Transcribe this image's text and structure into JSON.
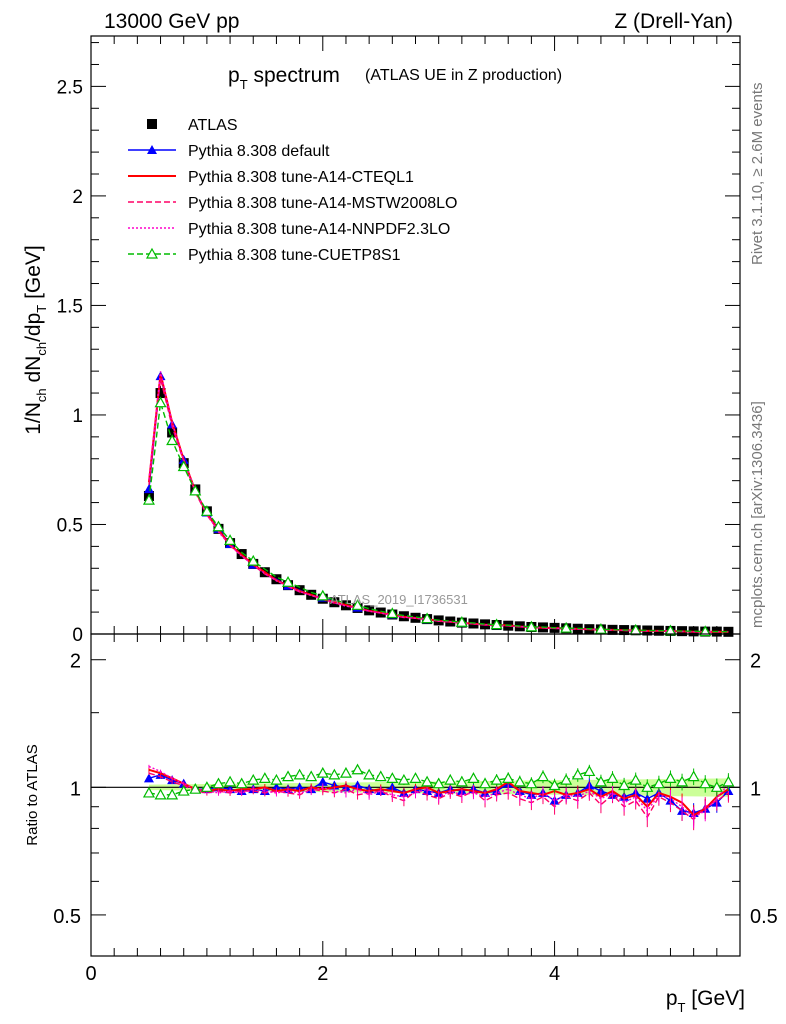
{
  "header": {
    "left": "13000 GeV pp",
    "right": "Z (Drell-Yan)"
  },
  "title": {
    "main": "p",
    "main_sub": "T",
    "main_rest": " spectrum",
    "extra": "(ATLAS UE in Z production)"
  },
  "side": {
    "rivet": "Rivet 3.1.10, ≥ 2.6M events",
    "mcplots": "mcplots.cern.ch [arXiv:1306.3436]"
  },
  "watermark": "ATLAS_2019_I1736531",
  "chart_data": {
    "type": "line",
    "xlabel": "p_T [GeV]",
    "ylabel": "1/N_ch dN_ch/dp_T [GeV]",
    "xlim": [
      0,
      5.6
    ],
    "ylim": [
      0,
      2.73
    ],
    "xticks": [
      {
        "v": 0,
        "t": "0"
      },
      {
        "v": 2,
        "t": "2"
      },
      {
        "v": 4,
        "t": "4"
      }
    ],
    "yticks": [
      {
        "v": 0,
        "t": "0"
      },
      {
        "v": 0.5,
        "t": "0.5"
      },
      {
        "v": 1,
        "t": "1"
      },
      {
        "v": 1.5,
        "t": "1.5"
      },
      {
        "v": 2,
        "t": "2"
      },
      {
        "v": 2.5,
        "t": "2.5"
      }
    ],
    "x": [
      0.5,
      0.6,
      0.7,
      0.8,
      0.9,
      1.0,
      1.1,
      1.2,
      1.3,
      1.4,
      1.5,
      1.6,
      1.7,
      1.8,
      1.9,
      2.0,
      2.1,
      2.2,
      2.3,
      2.4,
      2.5,
      2.6,
      2.7,
      2.8,
      2.9,
      3.0,
      3.1,
      3.2,
      3.3,
      3.4,
      3.5,
      3.6,
      3.7,
      3.8,
      3.9,
      4.0,
      4.1,
      4.2,
      4.3,
      4.4,
      4.5,
      4.6,
      4.7,
      4.8,
      4.9,
      5.0,
      5.1,
      5.2,
      5.3,
      5.4,
      5.5
    ],
    "series": [
      {
        "name": "ATLAS",
        "color": "#000000",
        "marker": "square",
        "values": [
          0.63,
          1.1,
          0.92,
          0.78,
          0.66,
          0.56,
          0.48,
          0.415,
          0.365,
          0.32,
          0.282,
          0.25,
          0.223,
          0.2,
          0.179,
          0.161,
          0.145,
          0.131,
          0.119,
          0.108,
          0.098,
          0.089,
          0.081,
          0.074,
          0.068,
          0.062,
          0.057,
          0.052,
          0.048,
          0.044,
          0.041,
          0.038,
          0.035,
          0.032,
          0.03,
          0.028,
          0.026,
          0.024,
          0.022,
          0.021,
          0.019,
          0.018,
          0.017,
          0.016,
          0.015,
          0.014,
          0.013,
          0.012,
          0.011,
          0.011,
          0.01
        ]
      },
      {
        "name": "Pythia 8.308 default",
        "color": "#0000ff",
        "style": "solid",
        "marker": "triangle",
        "ratio": [
          1.05,
          1.07,
          1.04,
          1.02,
          0.99,
          0.99,
          1.0,
          0.99,
          0.98,
          0.99,
          0.98,
          1.0,
          0.99,
          1.0,
          0.99,
          1.03,
          1.01,
          1.0,
          1.01,
          0.99,
          0.98,
          1.0,
          0.97,
          0.99,
          0.98,
          0.97,
          0.99,
          0.98,
          0.99,
          0.97,
          0.98,
          1.02,
          0.98,
          0.96,
          0.97,
          0.93,
          0.96,
          0.97,
          1.01,
          0.98,
          0.96,
          0.95,
          0.97,
          0.94,
          0.97,
          0.93,
          0.88,
          0.87,
          0.89,
          0.92,
          0.98
        ]
      },
      {
        "name": "Pythia 8.308 tune-A14-CTEQL1",
        "color": "#ff0000",
        "style": "solid",
        "ratio": [
          1.1,
          1.08,
          1.05,
          1.02,
          0.99,
          0.98,
          0.99,
          0.98,
          0.99,
          0.99,
          1.0,
          0.98,
          0.99,
          0.98,
          1.0,
          0.99,
          1.0,
          1.01,
          0.99,
          0.98,
          0.99,
          0.98,
          0.97,
          0.99,
          1.0,
          0.97,
          0.98,
          0.99,
          0.98,
          0.97,
          0.99,
          1.03,
          0.98,
          0.97,
          0.96,
          0.98,
          0.96,
          0.97,
          0.99,
          0.95,
          0.98,
          0.94,
          0.96,
          0.9,
          0.97,
          0.95,
          0.92,
          0.86,
          0.89,
          0.95,
          0.99
        ]
      },
      {
        "name": "Pythia 8.308 tune-A14-MSTW2008LO",
        "color": "#ff0066",
        "style": "dashed",
        "ratio": [
          1.08,
          1.06,
          1.03,
          1.01,
          0.98,
          0.97,
          0.98,
          0.97,
          0.98,
          0.98,
          0.97,
          0.98,
          0.97,
          0.96,
          0.99,
          0.98,
          0.97,
          0.99,
          0.96,
          0.97,
          0.98,
          0.95,
          0.93,
          0.98,
          0.96,
          0.94,
          0.97,
          0.95,
          0.98,
          0.93,
          0.96,
          0.97,
          0.94,
          0.92,
          0.95,
          0.9,
          0.95,
          0.93,
          0.97,
          0.91,
          0.96,
          0.9,
          0.93,
          0.85,
          0.95,
          0.92,
          0.88,
          0.84,
          0.9,
          0.93,
          0.97
        ]
      },
      {
        "name": "Pythia 8.308 tune-A14-NNPDF2.3LO",
        "color": "#ff00cc",
        "style": "dotted",
        "ratio": [
          1.12,
          1.09,
          1.05,
          1.02,
          0.99,
          0.98,
          0.97,
          0.98,
          0.97,
          0.99,
          0.98,
          0.97,
          0.98,
          0.97,
          0.98,
          1.0,
          0.98,
          0.97,
          0.99,
          0.96,
          0.98,
          0.96,
          0.95,
          0.97,
          0.99,
          0.95,
          0.98,
          0.96,
          0.97,
          0.95,
          0.97,
          0.99,
          0.96,
          0.94,
          0.97,
          0.93,
          0.96,
          0.95,
          0.98,
          0.94,
          0.97,
          0.92,
          0.95,
          0.88,
          0.96,
          0.94,
          0.9,
          0.85,
          0.88,
          0.94,
          1.02
        ]
      },
      {
        "name": "Pythia 8.308 tune-CUETP8S1",
        "color": "#00bb00",
        "style": "dashed",
        "marker": "open-triangle",
        "ratio": [
          0.97,
          0.96,
          0.96,
          0.98,
          0.99,
          1.0,
          1.02,
          1.03,
          1.02,
          1.04,
          1.05,
          1.04,
          1.06,
          1.07,
          1.06,
          1.08,
          1.07,
          1.08,
          1.1,
          1.07,
          1.06,
          1.05,
          1.04,
          1.05,
          1.03,
          1.02,
          1.04,
          1.03,
          1.05,
          1.02,
          1.04,
          1.05,
          1.03,
          1.02,
          1.06,
          1.01,
          1.04,
          1.07,
          1.09,
          1.03,
          1.05,
          1.01,
          1.04,
          1.0,
          1.02,
          1.05,
          1.03,
          1.06,
          1.02,
          1.0,
          1.03
        ]
      }
    ],
    "legend_position": "top-left",
    "ratio_panel": {
      "ylabel": "Ratio to ATLAS",
      "ylim": [
        0.4,
        2.3
      ],
      "log": true,
      "yticks": [
        {
          "v": 0.5,
          "t": "0.5"
        },
        {
          "v": 1,
          "t": "1"
        },
        {
          "v": 2,
          "t": "2"
        }
      ],
      "band_color": "#ccff99"
    }
  }
}
